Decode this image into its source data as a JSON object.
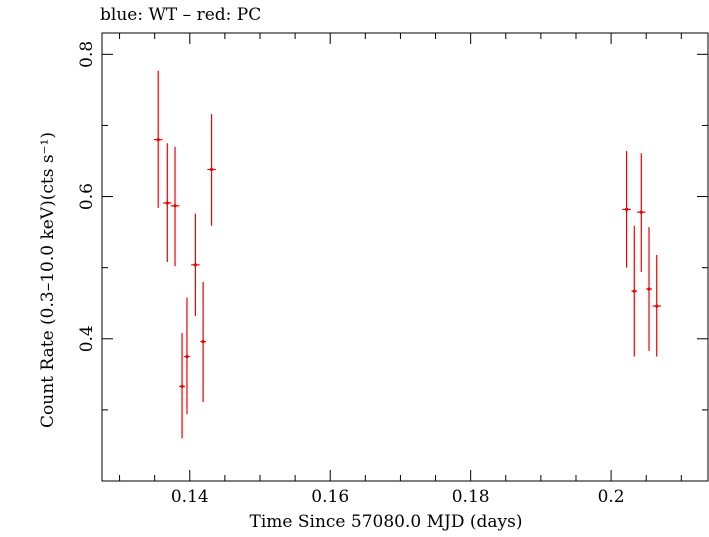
{
  "chart_data": {
    "type": "scatter",
    "title": "blue: WT – red: PC",
    "xlabel": "Time Since 57080.0 MJD (days)",
    "ylabel": "Count Rate (0.3–10.0 keV)(cts s⁻¹)",
    "xlim": [
      0.1275,
      0.2138
    ],
    "ylim": [
      0.2,
      0.83
    ],
    "xticks": [
      0.14,
      0.16,
      0.18,
      0.2
    ],
    "xtick_labels": [
      "0.14",
      "0.16",
      "0.18",
      "0.2"
    ],
    "yticks": [
      0.4,
      0.6,
      0.8
    ],
    "ytick_labels": [
      "0.4",
      "0.6",
      "0.8"
    ],
    "grid": false,
    "series": [
      {
        "color": "#ee0000",
        "points": [
          {
            "x": 0.1355,
            "y": 0.68,
            "xerr": 0.0006,
            "ylo": 0.584,
            "yhi": 0.777
          },
          {
            "x": 0.1368,
            "y": 0.591,
            "xerr": 0.0006,
            "ylo": 0.508,
            "yhi": 0.675
          },
          {
            "x": 0.1379,
            "y": 0.587,
            "xerr": 0.0006,
            "ylo": 0.502,
            "yhi": 0.67
          },
          {
            "x": 0.1389,
            "y": 0.333,
            "xerr": 0.0004,
            "ylo": 0.26,
            "yhi": 0.408
          },
          {
            "x": 0.1396,
            "y": 0.375,
            "xerr": 0.0004,
            "ylo": 0.294,
            "yhi": 0.458
          },
          {
            "x": 0.1408,
            "y": 0.504,
            "xerr": 0.0006,
            "ylo": 0.432,
            "yhi": 0.576
          },
          {
            "x": 0.1419,
            "y": 0.396,
            "xerr": 0.0004,
            "ylo": 0.311,
            "yhi": 0.48
          },
          {
            "x": 0.1431,
            "y": 0.638,
            "xerr": 0.0006,
            "ylo": 0.559,
            "yhi": 0.716
          },
          {
            "x": 0.2022,
            "y": 0.582,
            "xerr": 0.0006,
            "ylo": 0.5,
            "yhi": 0.664
          },
          {
            "x": 0.2033,
            "y": 0.467,
            "xerr": 0.0004,
            "ylo": 0.375,
            "yhi": 0.559
          },
          {
            "x": 0.2043,
            "y": 0.578,
            "xerr": 0.0006,
            "ylo": 0.494,
            "yhi": 0.661
          },
          {
            "x": 0.2054,
            "y": 0.47,
            "xerr": 0.0004,
            "ylo": 0.383,
            "yhi": 0.557
          },
          {
            "x": 0.2065,
            "y": 0.446,
            "xerr": 0.0006,
            "ylo": 0.375,
            "yhi": 0.518
          }
        ]
      }
    ]
  }
}
